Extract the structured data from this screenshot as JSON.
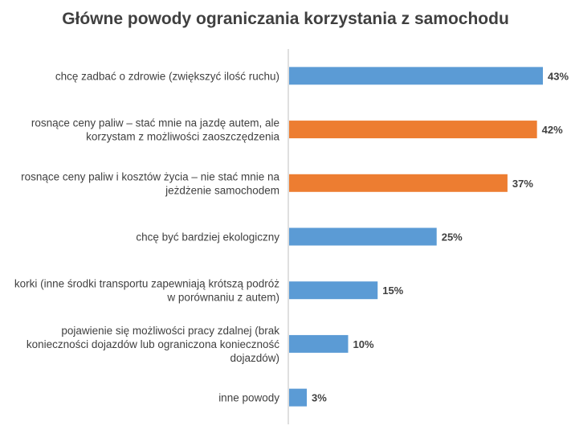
{
  "chart_data": {
    "type": "bar",
    "orientation": "horizontal",
    "title": "Główne powody ograniczania korzystania z samochodu",
    "categories": [
      [
        "chcę zadbać o zdrowie (zwiększyć ilość ruchu)"
      ],
      [
        "rosnące ceny paliw – stać mnie na jazdę autem, ale",
        "korzystam z możliwości zaoszczędzenia"
      ],
      [
        "rosnące ceny paliw i kosztów życia – nie stać mnie na",
        "jeżdżenie samochodem"
      ],
      [
        "chcę być bardziej ekologiczny"
      ],
      [
        "korki (inne środki transportu zapewniają krótszą podróż",
        "w porównaniu z autem)"
      ],
      [
        "pojawienie się możliwości pracy zdalnej (brak",
        "konieczności dojazdów lub ograniczona konieczność",
        "dojazdów)"
      ],
      [
        "inne powody"
      ]
    ],
    "values": [
      43,
      42,
      37,
      25,
      15,
      10,
      3
    ],
    "value_labels": [
      "43%",
      "42%",
      "37%",
      "25%",
      "15%",
      "10%",
      "3%"
    ],
    "bar_colors": [
      "#5b9bd5",
      "#ed7d31",
      "#ed7d31",
      "#5b9bd5",
      "#5b9bd5",
      "#5b9bd5",
      "#5b9bd5"
    ],
    "xlim": [
      0,
      50
    ],
    "grid": false,
    "legend": "none"
  }
}
